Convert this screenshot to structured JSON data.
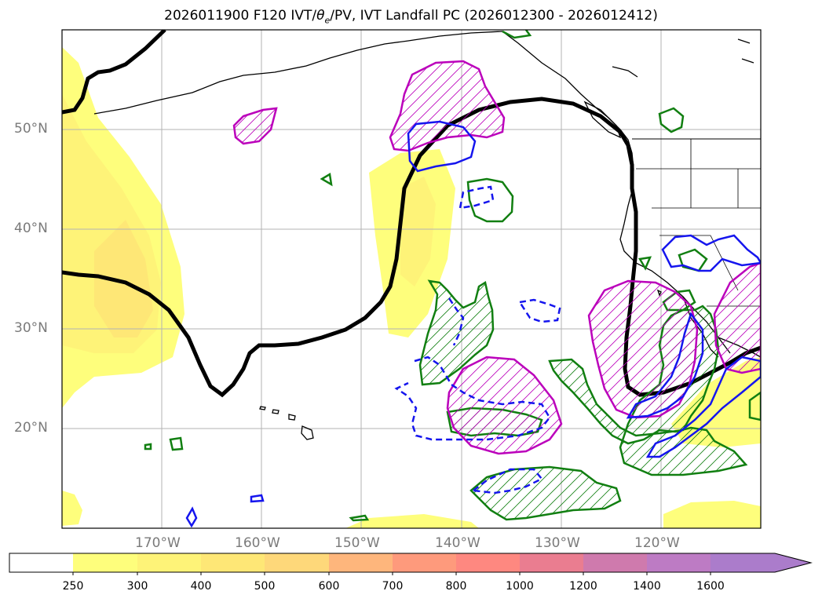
{
  "title_main": "2026011900 F120 IVT/",
  "title_theta": "θ",
  "title_sub": "e",
  "title_rest": "/PV, IVT Landfall PC (2026012300 - 2026012412)",
  "map": {
    "projection": "equirectangular",
    "lon_range_deg_east": [
      -180,
      -110
    ],
    "lat_range_deg_north": [
      10,
      60
    ],
    "gridlines": true
  },
  "lat_labels": [
    "50°N",
    "40°N",
    "30°N",
    "20°N"
  ],
  "lon_labels": [
    "170°W",
    "160°W",
    "150°W",
    "140°W",
    "130°W",
    "120°W"
  ],
  "colorbar": {
    "ticks": [
      "250",
      "300",
      "400",
      "500",
      "600",
      "700",
      "800",
      "1000",
      "1200",
      "1400",
      "1600"
    ],
    "colors": [
      "#ffffff",
      "#fefe7c",
      "#fef378",
      "#fee776",
      "#fed87a",
      "#feb67c",
      "#fe9a7c",
      "#fe8880",
      "#ea7d90",
      "#cf7aad",
      "#bd7bc4",
      "#ab7ccb"
    ],
    "extend": "max"
  },
  "colors": {
    "pv_contour": "#000000",
    "theta_e_magenta": "#bb00bb",
    "green_contour": "#117f11",
    "blue_contour": "#1515ee",
    "coastline": "#000000"
  }
}
